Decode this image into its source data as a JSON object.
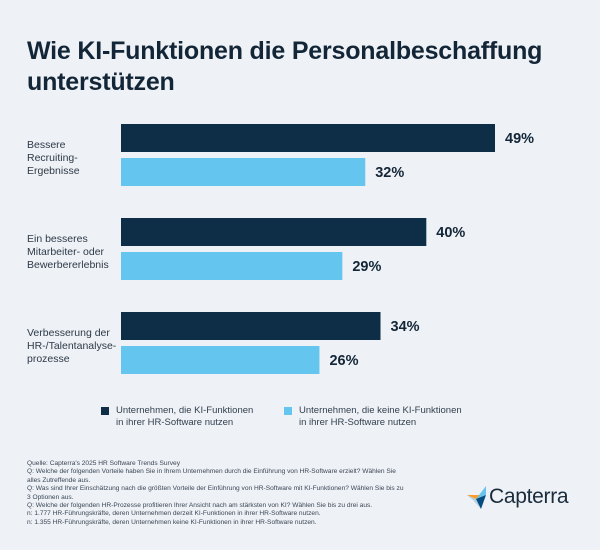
{
  "title": "Wie KI-Funktionen die Personalbeschaffung unterstützen",
  "colors": {
    "series_ki": "#0e2e47",
    "series_no_ki": "#64c5ef",
    "background": "#eef1f5",
    "logo_arrow_orange": "#ff9d28",
    "logo_arrow_blue": "#68c5ed",
    "logo_arrow_dark": "#044d80"
  },
  "chart_data": {
    "type": "bar",
    "orientation": "horizontal",
    "title": "Wie KI-Funktionen die Personalbeschaffung unterstützen",
    "categories": [
      [
        "Bessere",
        "Recruiting-",
        "Ergebnisse"
      ],
      [
        "Ein besseres",
        "Mitarbeiter- oder",
        "Bewerbererlebnis"
      ],
      [
        "Verbesserung der",
        "HR-/Talentanalyse-",
        "prozesse"
      ]
    ],
    "series": [
      {
        "name": "Unternehmen, die KI-Funktionen in ihrer HR-Software nutzen",
        "values": [
          49,
          40,
          34
        ],
        "labels": [
          "49%",
          "40%",
          "34%"
        ],
        "color": "#0e2e47"
      },
      {
        "name": "Unternehmen, die keine KI-Funktionen in ihrer HR-Software nutzen",
        "values": [
          32,
          29,
          26
        ],
        "labels": [
          "32%",
          "29%",
          "26%"
        ],
        "color": "#64c5ef"
      }
    ],
    "xlim": [
      0,
      100
    ],
    "grid": false,
    "legend_position": "bottom"
  },
  "legend": [
    {
      "line1": "Unternehmen, die KI-Funktionen",
      "line2": "in ihrer HR-Software nutzen"
    },
    {
      "line1": "Unternehmen, die keine KI-Funktionen",
      "line2": "in ihrer HR-Software nutzen"
    }
  ],
  "source_lines": [
    "Quelle: Capterra's 2025 HR Software Trends Survey",
    "Q: Welche der folgenden Vorteile haben Sie in Ihrem Unternehmen durch die Einführung von HR-Software erzielt? Wählen Sie",
    "alles Zutreffende aus.",
    "Q: Was sind Ihrer Einschätzung nach die größten Vorteile der Einführung von HR-Software mit KI-Funktionen? Wählen Sie bis zu",
    "3 Optionen aus.",
    "Q: Welche der folgenden HR-Prozesse profitieren Ihrer Ansicht nach am stärksten von KI? Wählen Sie bis zu drei aus.",
    "n: 1.777 HR-Führungskräfte, deren Unternehmen derzeit KI-Funktionen in ihrer HR-Software nutzen.",
    "n: 1.355 HR-Führungskräfte, deren Unternehmen keine KI-Funktionen in ihrer HR-Software nutzen."
  ],
  "logo": {
    "word": "Capterra",
    "icon": "capterra-arrow-icon"
  }
}
